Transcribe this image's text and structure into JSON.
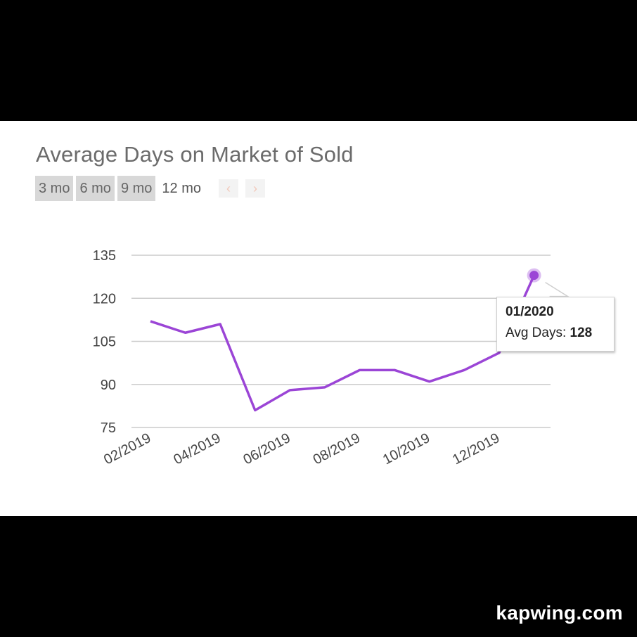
{
  "header": {
    "title": "Average Days on Market of Sold"
  },
  "range_buttons": [
    {
      "label": "3 mo",
      "active": false
    },
    {
      "label": "6 mo",
      "active": false
    },
    {
      "label": "9 mo",
      "active": false
    },
    {
      "label": "12 mo",
      "active": true
    }
  ],
  "nav": {
    "prev_icon": "‹",
    "next_icon": "›"
  },
  "tooltip": {
    "date": "01/2020",
    "label": "Avg Days:",
    "value": "128"
  },
  "watermark": "kapwing.com",
  "colors": {
    "line": "#9b45d6",
    "grid": "#cccccc",
    "background_band": "#000000"
  },
  "chart_data": {
    "type": "line",
    "title": "Average Days on Market of Sold",
    "xlabel": "",
    "ylabel": "",
    "x": [
      "02/2019",
      "03/2019",
      "04/2019",
      "05/2019",
      "06/2019",
      "07/2019",
      "08/2019",
      "09/2019",
      "10/2019",
      "11/2019",
      "12/2019",
      "01/2020"
    ],
    "x_tick_labels": [
      "02/2019",
      "04/2019",
      "06/2019",
      "08/2019",
      "10/2019",
      "12/2019"
    ],
    "series": [
      {
        "values": [
          112,
          108,
          111,
          81,
          88,
          89,
          95,
          95,
          91,
          95,
          101,
          128
        ]
      }
    ],
    "yticks": [
      75,
      90,
      105,
      120,
      135
    ],
    "ylim": [
      75,
      135
    ],
    "grid": true,
    "highlighted_point": {
      "x": "01/2020",
      "y": 128
    }
  }
}
